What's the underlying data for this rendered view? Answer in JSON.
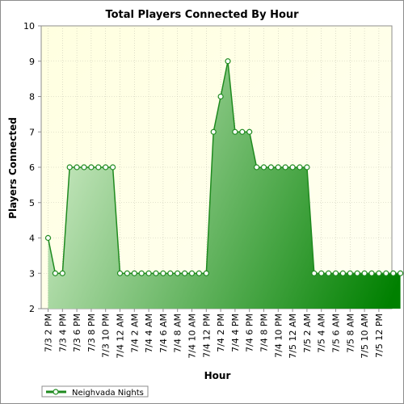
{
  "chart_data": {
    "type": "area",
    "title": "Total Players Connected By Hour",
    "xlabel": "Hour",
    "ylabel": "Players Connected",
    "ylim": [
      2,
      10
    ],
    "yticks": [
      2,
      3,
      4,
      5,
      6,
      7,
      8,
      9,
      10
    ],
    "grid": true,
    "legend_position": "bottom-left",
    "colors": {
      "line": "#1f8a1f",
      "fill_light": "#c8e8c0",
      "fill_dark": "#008000",
      "plot_bg_light": "#ffffe0",
      "plot_bg_dark": "#fffff2",
      "marker_fill": "#ffffff"
    },
    "x_tick_labels": [
      "7/3 2 PM",
      "7/3 4 PM",
      "7/3 6 PM",
      "7/3 8 PM",
      "7/3 10 PM",
      "7/4 12 AM",
      "7/4 2 AM",
      "7/4 4 AM",
      "7/4 6 AM",
      "7/4 8 AM",
      "7/4 10 AM",
      "7/4 12 PM",
      "7/4 2 PM",
      "7/4 4 PM",
      "7/4 6 PM",
      "7/4 8 PM",
      "7/4 10 PM",
      "7/5 12 AM",
      "7/5 2 AM",
      "7/5 4 AM",
      "7/5 6 AM",
      "7/5 8 AM",
      "7/5 10 AM",
      "7/5 12 PM"
    ],
    "series": [
      {
        "name": "Neighvada Nights",
        "values": [
          4,
          3,
          3,
          6,
          6,
          6,
          6,
          6,
          6,
          6,
          3,
          3,
          3,
          3,
          3,
          3,
          3,
          3,
          3,
          3,
          3,
          3,
          3,
          7,
          8,
          9,
          7,
          7,
          7,
          6,
          6,
          6,
          6,
          6,
          6,
          6,
          6,
          3,
          3,
          3,
          3,
          3,
          3,
          3,
          3,
          3,
          3,
          3,
          3,
          3
        ]
      }
    ]
  }
}
